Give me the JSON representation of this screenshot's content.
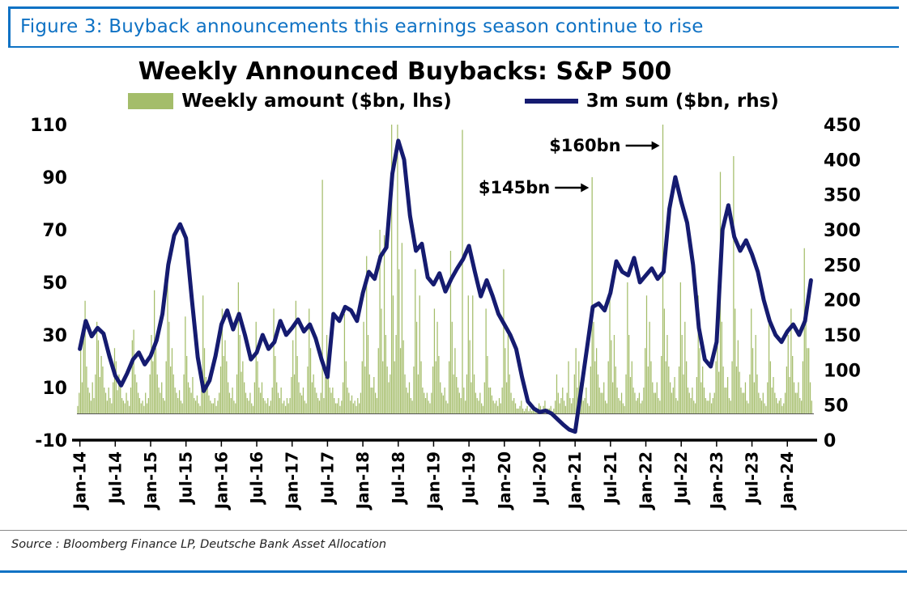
{
  "figure": {
    "caption": "Figure 3: Buyback announcements this earnings season continue to rise",
    "source": "Source : Bloomberg Finance LP, Deutsche Bank Asset Allocation",
    "accent_color": "#0f72c4"
  },
  "chart_data": {
    "type": "combo_bar_line",
    "title": "Weekly Announced Buybacks: S&P 500",
    "legend": [
      {
        "label": "Weekly amount ($bn, lhs)",
        "mark": "bar",
        "axis": "left"
      },
      {
        "label": "3m sum ($bn, rhs)",
        "mark": "line",
        "axis": "right"
      }
    ],
    "colors": {
      "bar": "#a4bd6a",
      "line": "#151b70",
      "axis": "#000000"
    },
    "left_axis": {
      "min": -10,
      "max": 110,
      "ticks": [
        110,
        90,
        70,
        50,
        30,
        10,
        -10
      ]
    },
    "right_axis": {
      "min": 0,
      "max": 450,
      "ticks": [
        450,
        400,
        350,
        300,
        250,
        200,
        150,
        100,
        50,
        0
      ]
    },
    "x_ticks": [
      "Jan-14",
      "Jul-14",
      "Jan-15",
      "Jul-15",
      "Jan-16",
      "Jul-16",
      "Jan-17",
      "Jul-17",
      "Jan-18",
      "Jul-18",
      "Jan-19",
      "Jul-19",
      "Jan-20",
      "Jul-20",
      "Jan-21",
      "Jul-21",
      "Jan-22",
      "Jul-22",
      "Jan-23",
      "Jul-23",
      "Jan-24"
    ],
    "x_start": "Jan-2014",
    "x_end": "May-2024",
    "bar_frequency": "weekly (approx., 4 per month)",
    "line_frequency": "monthly (approx.)",
    "weekly_bars": [
      3,
      8,
      25,
      12,
      30,
      43,
      18,
      10,
      8,
      5,
      12,
      6,
      15,
      35,
      28,
      14,
      22,
      18,
      10,
      8,
      5,
      10,
      6,
      4,
      12,
      25,
      20,
      9,
      15,
      10,
      6,
      5,
      4,
      8,
      5,
      3,
      10,
      28,
      32,
      15,
      12,
      8,
      6,
      4,
      5,
      3,
      8,
      4,
      6,
      15,
      30,
      20,
      47,
      25,
      15,
      10,
      8,
      12,
      6,
      5,
      20,
      58,
      35,
      18,
      25,
      15,
      10,
      8,
      6,
      9,
      5,
      4,
      15,
      37,
      22,
      12,
      10,
      8,
      14,
      6,
      5,
      7,
      4,
      3,
      12,
      45,
      25,
      14,
      10,
      7,
      5,
      4,
      4,
      6,
      3,
      5,
      8,
      18,
      40,
      22,
      28,
      20,
      12,
      8,
      6,
      10,
      5,
      4,
      15,
      50,
      30,
      16,
      20,
      12,
      8,
      6,
      5,
      8,
      4,
      3,
      12,
      35,
      20,
      10,
      8,
      12,
      6,
      5,
      4,
      6,
      3,
      5,
      10,
      40,
      22,
      12,
      8,
      6,
      10,
      4,
      5,
      3,
      6,
      4,
      6,
      14,
      28,
      15,
      43,
      22,
      12,
      8,
      7,
      10,
      5,
      4,
      18,
      40,
      25,
      12,
      15,
      10,
      8,
      6,
      5,
      8,
      89,
      6,
      14,
      30,
      18,
      10,
      8,
      10,
      6,
      4,
      4,
      6,
      3,
      5,
      12,
      38,
      20,
      10,
      8,
      5,
      7,
      4,
      5,
      3,
      6,
      4,
      8,
      20,
      35,
      18,
      60,
      30,
      15,
      10,
      10,
      14,
      8,
      6,
      25,
      70,
      40,
      20,
      68,
      30,
      18,
      12,
      15,
      110,
      45,
      20,
      30,
      110,
      55,
      25,
      65,
      28,
      15,
      10,
      8,
      12,
      6,
      5,
      18,
      55,
      35,
      15,
      45,
      20,
      10,
      8,
      6,
      8,
      5,
      4,
      8,
      18,
      40,
      20,
      35,
      22,
      12,
      8,
      7,
      10,
      5,
      4,
      20,
      62,
      35,
      15,
      25,
      14,
      10,
      8,
      6,
      108,
      10,
      5,
      15,
      45,
      28,
      12,
      45,
      15,
      8,
      6,
      5,
      8,
      4,
      3,
      12,
      40,
      22,
      10,
      10,
      7,
      5,
      4,
      5,
      3,
      6,
      4,
      10,
      55,
      25,
      12,
      30,
      15,
      8,
      5,
      6,
      4,
      2,
      2,
      3,
      5,
      2,
      1,
      2,
      3,
      1,
      2,
      1,
      2,
      2,
      1,
      2,
      4,
      3,
      1,
      3,
      5,
      2,
      2,
      2,
      3,
      1,
      2,
      5,
      15,
      8,
      4,
      6,
      10,
      5,
      3,
      8,
      20,
      6,
      4,
      6,
      15,
      25,
      10,
      20,
      12,
      8,
      5,
      6,
      10,
      4,
      3,
      18,
      90,
      35,
      20,
      25,
      15,
      10,
      8,
      8,
      12,
      5,
      4,
      20,
      45,
      28,
      12,
      30,
      18,
      10,
      6,
      5,
      8,
      4,
      3,
      15,
      50,
      30,
      14,
      20,
      10,
      8,
      5,
      6,
      8,
      4,
      5,
      10,
      25,
      45,
      18,
      35,
      20,
      12,
      8,
      8,
      12,
      6,
      5,
      22,
      110,
      40,
      20,
      30,
      18,
      12,
      8,
      10,
      14,
      6,
      5,
      18,
      50,
      30,
      15,
      35,
      20,
      10,
      8,
      6,
      10,
      5,
      4,
      14,
      45,
      25,
      12,
      18,
      10,
      6,
      5,
      5,
      8,
      4,
      6,
      8,
      20,
      38,
      16,
      92,
      35,
      18,
      10,
      10,
      14,
      6,
      5,
      20,
      98,
      40,
      18,
      28,
      16,
      10,
      8,
      8,
      12,
      5,
      4,
      15,
      40,
      25,
      12,
      30,
      15,
      8,
      6,
      5,
      8,
      4,
      3,
      12,
      35,
      20,
      10,
      14,
      8,
      6,
      4,
      5,
      6,
      3,
      4,
      8,
      18,
      30,
      14,
      40,
      22,
      12,
      8,
      8,
      12,
      6,
      5,
      20,
      63,
      35,
      25,
      25,
      12,
      5,
      0
    ],
    "line_3m_sum": [
      130,
      170,
      148,
      160,
      152,
      120,
      92,
      78,
      95,
      115,
      125,
      108,
      120,
      142,
      180,
      250,
      292,
      308,
      288,
      200,
      118,
      70,
      85,
      120,
      165,
      185,
      158,
      180,
      150,
      115,
      125,
      150,
      130,
      140,
      170,
      150,
      160,
      172,
      155,
      165,
      145,
      115,
      90,
      180,
      170,
      190,
      185,
      170,
      210,
      240,
      230,
      262,
      275,
      380,
      427,
      400,
      320,
      270,
      280,
      232,
      222,
      238,
      212,
      230,
      245,
      258,
      277,
      240,
      205,
      228,
      206,
      180,
      165,
      150,
      130,
      90,
      55,
      45,
      40,
      42,
      38,
      30,
      22,
      15,
      12,
      70,
      130,
      190,
      195,
      185,
      210,
      255,
      240,
      235,
      260,
      225,
      235,
      245,
      230,
      240,
      330,
      375,
      340,
      310,
      250,
      160,
      115,
      105,
      140,
      300,
      335,
      290,
      270,
      285,
      265,
      240,
      200,
      170,
      150,
      140,
      155,
      165,
      150,
      170,
      228
    ],
    "annotations": [
      {
        "label": "$145bn",
        "month": "Apr-21",
        "month_index": 87,
        "arrow_y_rhs": 360
      },
      {
        "label": "$160bn",
        "month": "Apr-22",
        "month_index": 99,
        "arrow_y_rhs": 420
      }
    ]
  }
}
